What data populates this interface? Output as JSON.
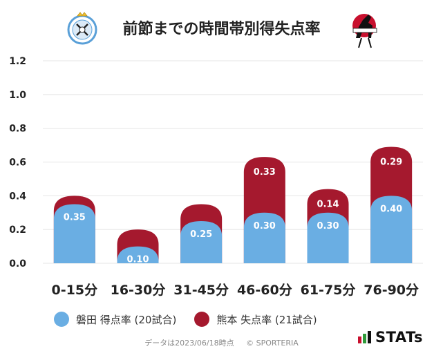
{
  "header": {
    "title": "前節までの時間帯別得失点率"
  },
  "colors": {
    "iwata": "#6aaee3",
    "kumamoto": "#a5192e",
    "grid": "#e4e4e4"
  },
  "chart_data": {
    "type": "bar",
    "categories": [
      "0-15分",
      "16-30分",
      "31-45分",
      "46-60分",
      "61-75分",
      "76-90分"
    ],
    "series": [
      {
        "name": "磐田 得点率 (20試合)",
        "values": [
          0.35,
          0.1,
          0.25,
          0.3,
          0.3,
          0.4
        ]
      },
      {
        "name": "熊本 失点率 (21試合)",
        "values": [
          0.05,
          0.1,
          0.1,
          0.33,
          0.14,
          0.29
        ]
      }
    ],
    "data_labels": [
      [
        "0.35",
        "0.10",
        "0.25",
        "0.30",
        "0.30",
        "0.40"
      ],
      [
        "",
        "",
        "",
        "0.33",
        "0.14",
        "0.29"
      ]
    ],
    "yticks": [
      "0.0",
      "0.2",
      "0.4",
      "0.6",
      "0.8",
      "1.0",
      "1.2"
    ],
    "ylim": [
      0,
      1.2
    ],
    "stacked": true,
    "grid": true,
    "legend_position": "bottom"
  },
  "footer": {
    "note": "データは2023/06/18時点",
    "copyright": "© SPORTERIA"
  },
  "branding": {
    "stats_label": "STATs"
  },
  "icons": {
    "home_crest": "jubilo-crest-icon",
    "away_crest": "roasso-crest-icon"
  }
}
